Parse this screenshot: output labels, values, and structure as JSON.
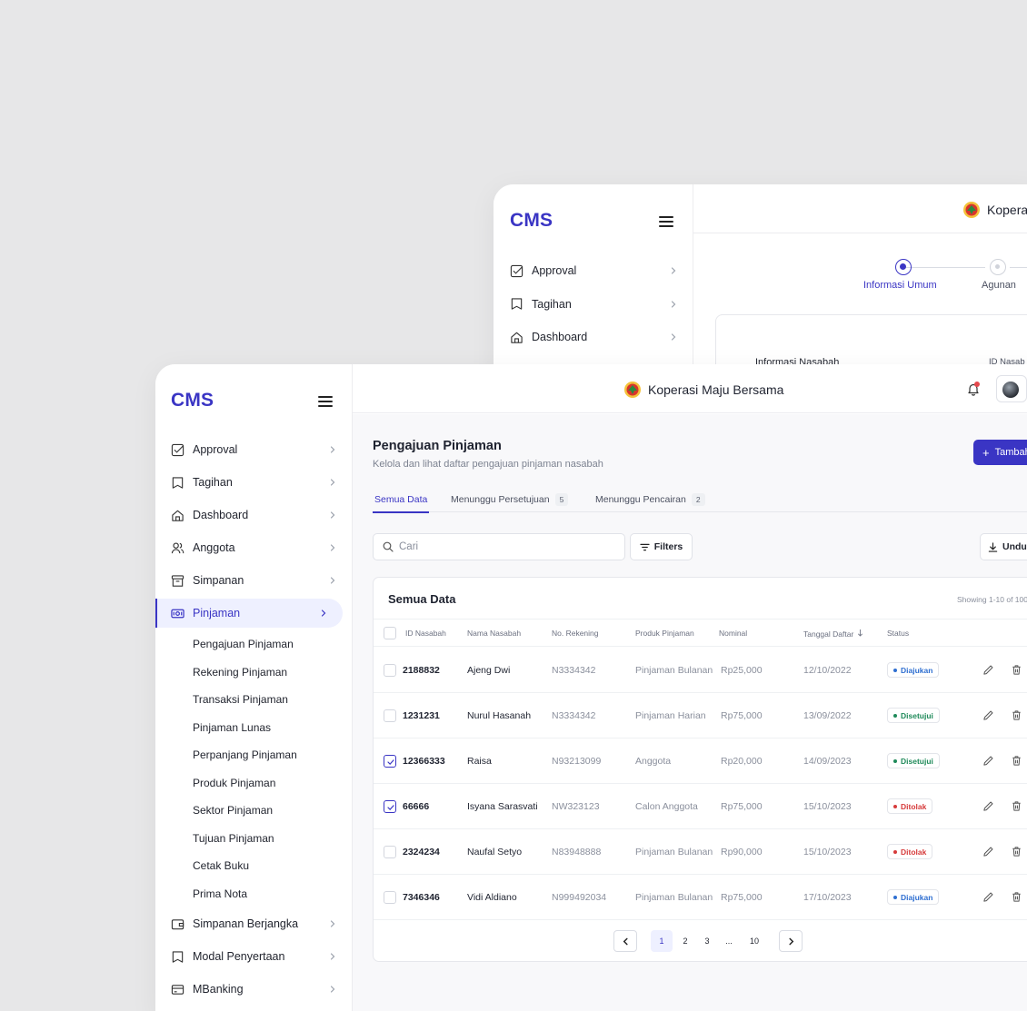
{
  "back_window": {
    "logo": "CMS",
    "brand": "Kopera",
    "nav": [
      {
        "label": "Approval",
        "icon": "approval-icon"
      },
      {
        "label": "Tagihan",
        "icon": "bookmark-icon"
      },
      {
        "label": "Dashboard",
        "icon": "home-icon"
      }
    ],
    "steps": [
      {
        "label": "Informasi Umum",
        "state": "active"
      },
      {
        "label": "Agunan",
        "state": "inactive"
      }
    ],
    "section_title": "Informasi Nasabah",
    "field_label": "ID Nasab"
  },
  "front_window": {
    "logo": "CMS",
    "brand": "Koperasi Maju Bersama",
    "nav": [
      {
        "label": "Approval",
        "icon": "approval-icon"
      },
      {
        "label": "Tagihan",
        "icon": "bookmark-icon"
      },
      {
        "label": "Dashboard",
        "icon": "home-icon"
      },
      {
        "label": "Anggota",
        "icon": "users-icon"
      },
      {
        "label": "Simpanan",
        "icon": "archive-icon"
      },
      {
        "label": "Pinjaman",
        "icon": "money-icon",
        "active": true
      }
    ],
    "sub_nav": [
      "Pengajuan Pinjaman",
      "Rekening Pinjaman",
      "Transaksi Pinjaman",
      "Pinjaman Lunas",
      "Perpanjang Pinjaman",
      "Produk Pinjaman",
      "Sektor Pinjaman",
      "Tujuan Pinjaman",
      "Cetak Buku",
      "Prima Nota"
    ],
    "nav_bottom": [
      {
        "label": "Simpanan Berjangka",
        "icon": "wallet-icon"
      },
      {
        "label": "Modal Penyertaan",
        "icon": "bookmark-icon"
      },
      {
        "label": "MBanking",
        "icon": "card-icon"
      }
    ],
    "page": {
      "title": "Pengajuan Pinjaman",
      "subtitle": "Kelola dan lihat daftar pengajuan pinjaman nasabah",
      "add_button": "Tambah"
    },
    "tabs": [
      {
        "label": "Semua Data",
        "badge": "",
        "active": true
      },
      {
        "label": "Menunggu Persetujuan",
        "badge": "5",
        "active": false
      },
      {
        "label": "Menunggu Pencairan",
        "badge": "2",
        "active": false
      }
    ],
    "search": {
      "placeholder": "Cari"
    },
    "filters_label": "Filters",
    "download_label": "Unduh",
    "table": {
      "title": "Semua Data",
      "showing": "Showing 1-10 of 100",
      "columns": [
        "ID Nasabah",
        "Nama Nasabah",
        "No. Rekening",
        "Produk Pinjaman",
        "Nominal",
        "Tanggal Daftar",
        "Status"
      ],
      "rows": [
        {
          "id": "2188832",
          "name": "Ajeng Dwi",
          "rekening": "N3334342",
          "produk": "Pinjaman Bulanan",
          "nominal": "Rp25,000",
          "tanggal": "12/10/2022",
          "status": "Diajukan",
          "checked": false
        },
        {
          "id": "1231231",
          "name": "Nurul Hasanah",
          "rekening": "N3334342",
          "produk": "Pinjaman Harian",
          "nominal": "Rp75,000",
          "tanggal": "13/09/2022",
          "status": "Disetujui",
          "checked": false
        },
        {
          "id": "12366333",
          "name": "Raisa",
          "rekening": "N93213099",
          "produk": "Anggota",
          "nominal": "Rp20,000",
          "tanggal": "14/09/2023",
          "status": "Disetujui",
          "checked": true
        },
        {
          "id": "66666",
          "name": "Isyana Sarasvati",
          "rekening": "NW323123",
          "produk": "Calon Anggota",
          "nominal": "Rp75,000",
          "tanggal": "15/10/2023",
          "status": "Ditolak",
          "checked": true
        },
        {
          "id": "2324234",
          "name": "Naufal Setyo",
          "rekening": "N83948888",
          "produk": "Pinjaman Bulanan",
          "nominal": "Rp90,000",
          "tanggal": "15/10/2023",
          "status": "Ditolak",
          "checked": false
        },
        {
          "id": "7346346",
          "name": "Vidi Aldiano",
          "rekening": "N999492034",
          "produk": "Pinjaman Bulanan",
          "nominal": "Rp75,000",
          "tanggal": "17/10/2023",
          "status": "Diajukan",
          "checked": false
        }
      ]
    },
    "pagination": {
      "pages": [
        "1",
        "2",
        "3",
        "...",
        "10"
      ],
      "current": "1"
    }
  },
  "colors": {
    "accent": "#3a35c4",
    "diajukan": "#2f6fd1",
    "disetujui": "#1f8a5a",
    "ditolak": "#d63b3b"
  }
}
